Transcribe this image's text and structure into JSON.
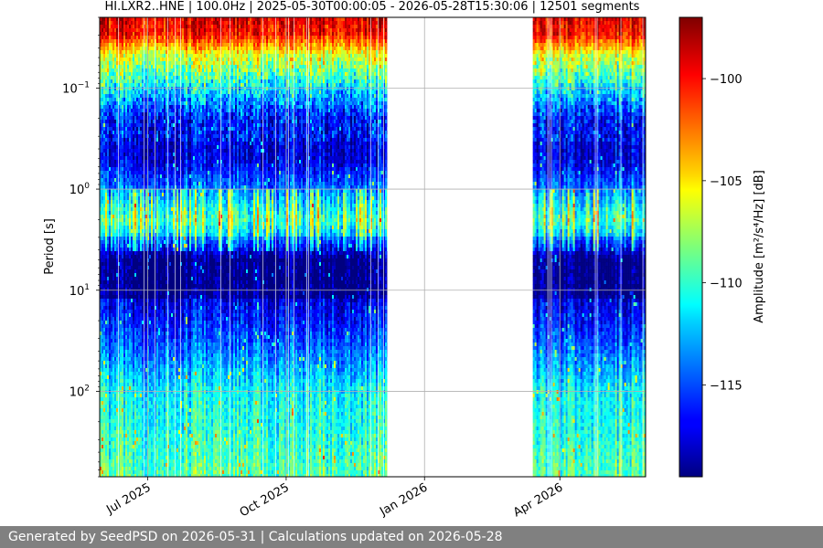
{
  "chart_data": {
    "type": "heatmap",
    "title": "HI.LXR2..HNE | 100.0Hz | 2025-05-30T00:00:05 - 2026-05-28T15:30:06 | 12501 segments",
    "xlabel": "",
    "ylabel": "Period [s]",
    "x_range": [
      "2025-05-30",
      "2026-05-28"
    ],
    "x_ticks": [
      {
        "date": "2025-07-01",
        "label": "Jul 2025"
      },
      {
        "date": "2025-10-01",
        "label": "Oct 2025"
      },
      {
        "date": "2026-01-01",
        "label": "Jan 2026"
      },
      {
        "date": "2026-04-01",
        "label": "Apr 2026"
      }
    ],
    "y_scale": "log",
    "y_inverted": true,
    "y_range": [
      0.02,
      700
    ],
    "y_ticks": [
      {
        "value": 0.1,
        "base": "10",
        "exp": "−1"
      },
      {
        "value": 1,
        "base": "10",
        "exp": "0"
      },
      {
        "value": 10,
        "base": "10",
        "exp": "1"
      },
      {
        "value": 100,
        "base": "10",
        "exp": "2"
      }
    ],
    "data_segments": [
      {
        "start": "2025-05-30",
        "end": "2025-12-07"
      },
      {
        "start": "2026-03-14",
        "end": "2026-05-28"
      }
    ],
    "gap": {
      "start": "2025-12-07",
      "end": "2026-03-14"
    },
    "period_profile_db": [
      {
        "period": 0.02,
        "db": -99
      },
      {
        "period": 0.03,
        "db": -100
      },
      {
        "period": 0.05,
        "db": -107
      },
      {
        "period": 0.1,
        "db": -112
      },
      {
        "period": 0.2,
        "db": -117
      },
      {
        "period": 0.5,
        "db": -117.5
      },
      {
        "period": 1,
        "db": -114
      },
      {
        "period": 2,
        "db": -110
      },
      {
        "period": 3,
        "db": -113
      },
      {
        "period": 5,
        "db": -118
      },
      {
        "period": 10,
        "db": -118
      },
      {
        "period": 30,
        "db": -115
      },
      {
        "period": 100,
        "db": -111
      },
      {
        "period": 300,
        "db": -110
      },
      {
        "period": 700,
        "db": -109
      }
    ],
    "grid": true,
    "colorbar": {
      "label": "Amplitude [m²/s⁴/Hz] [dB]",
      "colormap": "jet",
      "min": -119.5,
      "max": -97,
      "ticks": [
        -100,
        -105,
        -110,
        -115
      ]
    }
  },
  "footer": {
    "text": "Generated by SeedPSD on 2026-05-31 | Calculations updated on 2026-05-28"
  }
}
